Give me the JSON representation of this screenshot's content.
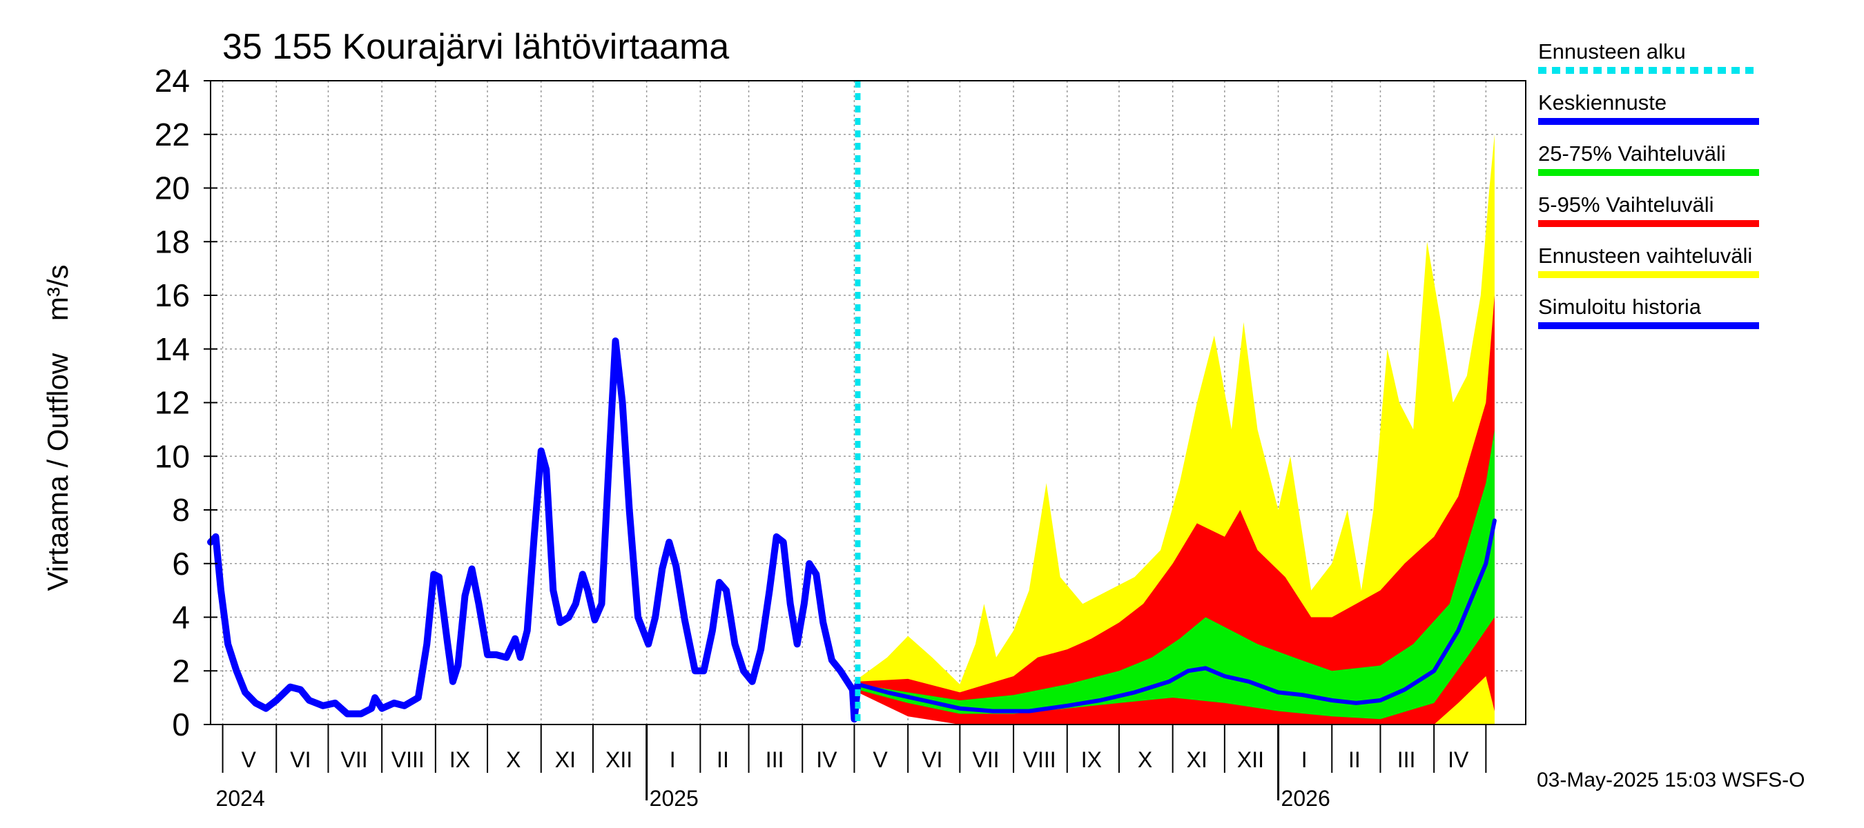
{
  "chart_data": {
    "type": "area",
    "title": "35 155 Kourajärvi lähtövirtaama",
    "ylabel": "Virtaama / Outflow    m³/s",
    "ylim": [
      0,
      24
    ],
    "yticks": [
      "0",
      "2",
      "4",
      "6",
      "8",
      "10",
      "12",
      "14",
      "16",
      "18",
      "20",
      "22",
      "24"
    ],
    "x_range": [
      "2024-04-24",
      "2026-05-24"
    ],
    "forecast_start": "2025-05-03",
    "month_labels": [
      {
        "label": "V",
        "date": "2024-05-16"
      },
      {
        "label": "VI",
        "date": "2024-06-15"
      },
      {
        "label": "VII",
        "date": "2024-07-16"
      },
      {
        "label": "VIII",
        "date": "2024-08-16"
      },
      {
        "label": "IX",
        "date": "2024-09-15"
      },
      {
        "label": "X",
        "date": "2024-10-16"
      },
      {
        "label": "XI",
        "date": "2024-11-15"
      },
      {
        "label": "XII",
        "date": "2024-12-16"
      },
      {
        "label": "I",
        "date": "2025-01-16"
      },
      {
        "label": "II",
        "date": "2025-02-14"
      },
      {
        "label": "III",
        "date": "2025-03-16"
      },
      {
        "label": "IV",
        "date": "2025-04-15"
      },
      {
        "label": "V",
        "date": "2025-05-16"
      },
      {
        "label": "VI",
        "date": "2025-06-15"
      },
      {
        "label": "VII",
        "date": "2025-07-16"
      },
      {
        "label": "VIII",
        "date": "2025-08-16"
      },
      {
        "label": "IX",
        "date": "2025-09-15"
      },
      {
        "label": "X",
        "date": "2025-10-16"
      },
      {
        "label": "XI",
        "date": "2025-11-15"
      },
      {
        "label": "XII",
        "date": "2025-12-16"
      },
      {
        "label": "I",
        "date": "2026-01-16"
      },
      {
        "label": "II",
        "date": "2026-02-14"
      },
      {
        "label": "III",
        "date": "2026-03-16"
      },
      {
        "label": "IV",
        "date": "2026-04-15"
      }
    ],
    "year_labels": [
      {
        "label": "2024",
        "date": "2024-05-01"
      },
      {
        "label": "2025",
        "date": "2025-01-01"
      },
      {
        "label": "2026",
        "date": "2026-01-01"
      }
    ],
    "month_starts": [
      "2024-05-01",
      "2024-06-01",
      "2024-07-01",
      "2024-08-01",
      "2024-09-01",
      "2024-10-01",
      "2024-11-01",
      "2024-12-01",
      "2025-01-01",
      "2025-02-01",
      "2025-03-01",
      "2025-04-01",
      "2025-05-01",
      "2025-06-01",
      "2025-07-01",
      "2025-08-01",
      "2025-09-01",
      "2025-10-01",
      "2025-11-01",
      "2025-12-01",
      "2026-01-01",
      "2026-02-01",
      "2026-03-01",
      "2026-04-01",
      "2026-05-01"
    ],
    "grid": true,
    "legend_position": "right",
    "series": [
      {
        "name": "Simuloitu historia",
        "color": "#0000ff",
        "points": [
          [
            "2024-04-24",
            6.8
          ],
          [
            "2024-04-27",
            7.0
          ],
          [
            "2024-04-30",
            5.0
          ],
          [
            "2024-05-04",
            3.0
          ],
          [
            "2024-05-09",
            2.0
          ],
          [
            "2024-05-14",
            1.2
          ],
          [
            "2024-05-20",
            0.8
          ],
          [
            "2024-05-26",
            0.6
          ],
          [
            "2024-06-01",
            0.9
          ],
          [
            "2024-06-09",
            1.4
          ],
          [
            "2024-06-15",
            1.3
          ],
          [
            "2024-06-20",
            0.9
          ],
          [
            "2024-06-28",
            0.7
          ],
          [
            "2024-07-05",
            0.8
          ],
          [
            "2024-07-12",
            0.4
          ],
          [
            "2024-07-20",
            0.4
          ],
          [
            "2024-07-26",
            0.6
          ],
          [
            "2024-07-28",
            1.0
          ],
          [
            "2024-08-01",
            0.6
          ],
          [
            "2024-08-08",
            0.8
          ],
          [
            "2024-08-14",
            0.7
          ],
          [
            "2024-08-22",
            1.0
          ],
          [
            "2024-08-27",
            3.0
          ],
          [
            "2024-08-31",
            5.6
          ],
          [
            "2024-09-03",
            5.5
          ],
          [
            "2024-09-08",
            3.0
          ],
          [
            "2024-09-11",
            1.6
          ],
          [
            "2024-09-14",
            2.2
          ],
          [
            "2024-09-18",
            4.8
          ],
          [
            "2024-09-22",
            5.8
          ],
          [
            "2024-09-26",
            4.5
          ],
          [
            "2024-10-01",
            2.6
          ],
          [
            "2024-10-06",
            2.6
          ],
          [
            "2024-10-12",
            2.5
          ],
          [
            "2024-10-17",
            3.2
          ],
          [
            "2024-10-20",
            2.5
          ],
          [
            "2024-10-24",
            3.5
          ],
          [
            "2024-10-28",
            7.0
          ],
          [
            "2024-11-01",
            10.2
          ],
          [
            "2024-11-04",
            9.5
          ],
          [
            "2024-11-08",
            5.0
          ],
          [
            "2024-11-12",
            3.8
          ],
          [
            "2024-11-17",
            4.0
          ],
          [
            "2024-11-21",
            4.5
          ],
          [
            "2024-11-25",
            5.6
          ],
          [
            "2024-11-28",
            5.0
          ],
          [
            "2024-12-02",
            3.9
          ],
          [
            "2024-12-06",
            4.5
          ],
          [
            "2024-12-10",
            9.5
          ],
          [
            "2024-12-14",
            14.3
          ],
          [
            "2024-12-18",
            12.0
          ],
          [
            "2024-12-22",
            8.0
          ],
          [
            "2024-12-27",
            4.0
          ],
          [
            "2025-01-02",
            3.0
          ],
          [
            "2025-01-06",
            4.0
          ],
          [
            "2025-01-10",
            5.8
          ],
          [
            "2025-01-14",
            6.8
          ],
          [
            "2025-01-18",
            5.9
          ],
          [
            "2025-01-23",
            3.9
          ],
          [
            "2025-01-29",
            2.0
          ],
          [
            "2025-02-03",
            2.0
          ],
          [
            "2025-02-08",
            3.5
          ],
          [
            "2025-02-12",
            5.3
          ],
          [
            "2025-02-16",
            5.0
          ],
          [
            "2025-02-21",
            3.0
          ],
          [
            "2025-02-26",
            2.0
          ],
          [
            "2025-03-03",
            1.6
          ],
          [
            "2025-03-08",
            2.8
          ],
          [
            "2025-03-13",
            5.0
          ],
          [
            "2025-03-17",
            7.0
          ],
          [
            "2025-03-21",
            6.8
          ],
          [
            "2025-03-25",
            4.5
          ],
          [
            "2025-03-29",
            3.0
          ],
          [
            "2025-04-02",
            4.5
          ],
          [
            "2025-04-05",
            6.0
          ],
          [
            "2025-04-09",
            5.6
          ],
          [
            "2025-04-13",
            3.8
          ],
          [
            "2025-04-18",
            2.4
          ],
          [
            "2025-04-23",
            2.0
          ],
          [
            "2025-04-28",
            1.5
          ],
          [
            "2025-04-30",
            1.3
          ],
          [
            "2025-05-01",
            0.2
          ],
          [
            "2025-05-02",
            0.8
          ],
          [
            "2025-05-03",
            1.5
          ]
        ]
      },
      {
        "name": "Ennusteen vaihteluväli",
        "color": "#ffff00",
        "upper": [
          [
            "2025-05-03",
            1.7
          ],
          [
            "2025-05-20",
            2.5
          ],
          [
            "2025-06-01",
            3.3
          ],
          [
            "2025-06-15",
            2.5
          ],
          [
            "2025-07-01",
            1.5
          ],
          [
            "2025-07-10",
            3.0
          ],
          [
            "2025-07-15",
            4.5
          ],
          [
            "2025-07-22",
            2.5
          ],
          [
            "2025-08-01",
            3.5
          ],
          [
            "2025-08-10",
            5.0
          ],
          [
            "2025-08-20",
            9.0
          ],
          [
            "2025-08-28",
            5.5
          ],
          [
            "2025-09-10",
            4.5
          ],
          [
            "2025-09-25",
            5.0
          ],
          [
            "2025-10-10",
            5.5
          ],
          [
            "2025-10-25",
            6.5
          ],
          [
            "2025-11-05",
            9.0
          ],
          [
            "2025-11-15",
            12.0
          ],
          [
            "2025-11-25",
            14.5
          ],
          [
            "2025-12-05",
            11.0
          ],
          [
            "2025-12-12",
            15.0
          ],
          [
            "2025-12-20",
            11.0
          ],
          [
            "2026-01-01",
            8.0
          ],
          [
            "2026-01-08",
            10.0
          ],
          [
            "2026-01-20",
            5.0
          ],
          [
            "2026-02-01",
            6.0
          ],
          [
            "2026-02-10",
            8.0
          ],
          [
            "2026-02-18",
            5.0
          ],
          [
            "2026-02-25",
            8.0
          ],
          [
            "2026-03-05",
            14.0
          ],
          [
            "2026-03-12",
            12.0
          ],
          [
            "2026-03-20",
            11.0
          ],
          [
            "2026-03-28",
            18.0
          ],
          [
            "2026-04-05",
            15.0
          ],
          [
            "2026-04-12",
            12.0
          ],
          [
            "2026-04-20",
            13.0
          ],
          [
            "2026-04-28",
            16.0
          ],
          [
            "2026-05-03",
            20.0
          ],
          [
            "2026-05-06",
            22.0
          ]
        ],
        "lower": [
          [
            "2025-05-03",
            1.3
          ],
          [
            "2025-06-01",
            0.6
          ],
          [
            "2025-07-01",
            0.2
          ],
          [
            "2025-08-01",
            0.0
          ],
          [
            "2026-05-06",
            0.0
          ]
        ]
      },
      {
        "name": "5-95% Vaihteluväli",
        "color": "#ff0000",
        "upper": [
          [
            "2025-05-03",
            1.6
          ],
          [
            "2025-06-01",
            1.7
          ],
          [
            "2025-07-01",
            1.2
          ],
          [
            "2025-08-01",
            1.8
          ],
          [
            "2025-08-15",
            2.5
          ],
          [
            "2025-09-01",
            2.8
          ],
          [
            "2025-09-15",
            3.2
          ],
          [
            "2025-10-01",
            3.8
          ],
          [
            "2025-10-15",
            4.5
          ],
          [
            "2025-11-01",
            6.0
          ],
          [
            "2025-11-15",
            7.5
          ],
          [
            "2025-12-01",
            7.0
          ],
          [
            "2025-12-10",
            8.0
          ],
          [
            "2025-12-20",
            6.5
          ],
          [
            "2026-01-05",
            5.5
          ],
          [
            "2026-01-20",
            4.0
          ],
          [
            "2026-02-01",
            4.0
          ],
          [
            "2026-02-15",
            4.5
          ],
          [
            "2026-03-01",
            5.0
          ],
          [
            "2026-03-15",
            6.0
          ],
          [
            "2026-04-01",
            7.0
          ],
          [
            "2026-04-15",
            8.5
          ],
          [
            "2026-05-01",
            12.0
          ],
          [
            "2026-05-06",
            16.0
          ]
        ],
        "lower": [
          [
            "2025-05-03",
            1.2
          ],
          [
            "2025-06-01",
            0.3
          ],
          [
            "2025-07-01",
            0.0
          ],
          [
            "2026-04-01",
            0.0
          ],
          [
            "2026-04-15",
            0.8
          ],
          [
            "2026-05-01",
            1.8
          ],
          [
            "2026-05-06",
            0.5
          ]
        ]
      },
      {
        "name": "25-75% Vaihteluväli",
        "color": "#00ee00",
        "upper": [
          [
            "2025-05-03",
            1.5
          ],
          [
            "2025-06-01",
            1.2
          ],
          [
            "2025-07-01",
            0.9
          ],
          [
            "2025-08-01",
            1.1
          ],
          [
            "2025-09-01",
            1.5
          ],
          [
            "2025-10-01",
            2.0
          ],
          [
            "2025-10-20",
            2.5
          ],
          [
            "2025-11-05",
            3.2
          ],
          [
            "2025-11-20",
            4.0
          ],
          [
            "2025-12-05",
            3.5
          ],
          [
            "2025-12-20",
            3.0
          ],
          [
            "2026-01-10",
            2.5
          ],
          [
            "2026-02-01",
            2.0
          ],
          [
            "2026-03-01",
            2.2
          ],
          [
            "2026-03-20",
            3.0
          ],
          [
            "2026-04-10",
            4.5
          ],
          [
            "2026-05-01",
            9.0
          ],
          [
            "2026-05-06",
            11.0
          ]
        ],
        "lower": [
          [
            "2025-05-03",
            1.3
          ],
          [
            "2025-06-01",
            0.8
          ],
          [
            "2025-07-01",
            0.4
          ],
          [
            "2025-08-01",
            0.4
          ],
          [
            "2025-09-01",
            0.6
          ],
          [
            "2025-10-01",
            0.8
          ],
          [
            "2025-11-01",
            1.0
          ],
          [
            "2025-12-01",
            0.8
          ],
          [
            "2026-01-01",
            0.5
          ],
          [
            "2026-02-01",
            0.3
          ],
          [
            "2026-03-01",
            0.2
          ],
          [
            "2026-04-01",
            0.8
          ],
          [
            "2026-04-20",
            2.5
          ],
          [
            "2026-05-06",
            4.0
          ]
        ]
      },
      {
        "name": "Keskiennuste",
        "color": "#0000ff",
        "points": [
          [
            "2025-05-03",
            1.5
          ],
          [
            "2025-05-20",
            1.2
          ],
          [
            "2025-06-10",
            0.9
          ],
          [
            "2025-07-01",
            0.6
          ],
          [
            "2025-07-20",
            0.5
          ],
          [
            "2025-08-10",
            0.5
          ],
          [
            "2025-09-01",
            0.7
          ],
          [
            "2025-09-20",
            0.9
          ],
          [
            "2025-10-10",
            1.2
          ],
          [
            "2025-10-30",
            1.6
          ],
          [
            "2025-11-10",
            2.0
          ],
          [
            "2025-11-20",
            2.1
          ],
          [
            "2025-12-01",
            1.8
          ],
          [
            "2025-12-15",
            1.6
          ],
          [
            "2026-01-01",
            1.2
          ],
          [
            "2026-01-15",
            1.1
          ],
          [
            "2026-02-01",
            0.9
          ],
          [
            "2026-02-15",
            0.8
          ],
          [
            "2026-03-01",
            0.9
          ],
          [
            "2026-03-15",
            1.3
          ],
          [
            "2026-04-01",
            2.0
          ],
          [
            "2026-04-15",
            3.5
          ],
          [
            "2026-05-01",
            6.0
          ],
          [
            "2026-05-06",
            7.6
          ]
        ]
      }
    ],
    "legend": [
      {
        "label": "Ennusteen alku",
        "color": "#00e5ee",
        "dashed": true
      },
      {
        "label": "Keskiennuste",
        "color": "#0000ff",
        "dashed": false
      },
      {
        "label": "25-75% Vaihteluväli",
        "color": "#00ee00",
        "dashed": false
      },
      {
        "label": "5-95% Vaihteluväli",
        "color": "#ff0000",
        "dashed": false
      },
      {
        "label": "Ennusteen vaihteluväli",
        "color": "#ffff00",
        "dashed": false
      },
      {
        "label": "Simuloitu historia",
        "color": "#0000ff",
        "dashed": false
      }
    ],
    "footer": "03-May-2025 15:03 WSFS-O"
  }
}
